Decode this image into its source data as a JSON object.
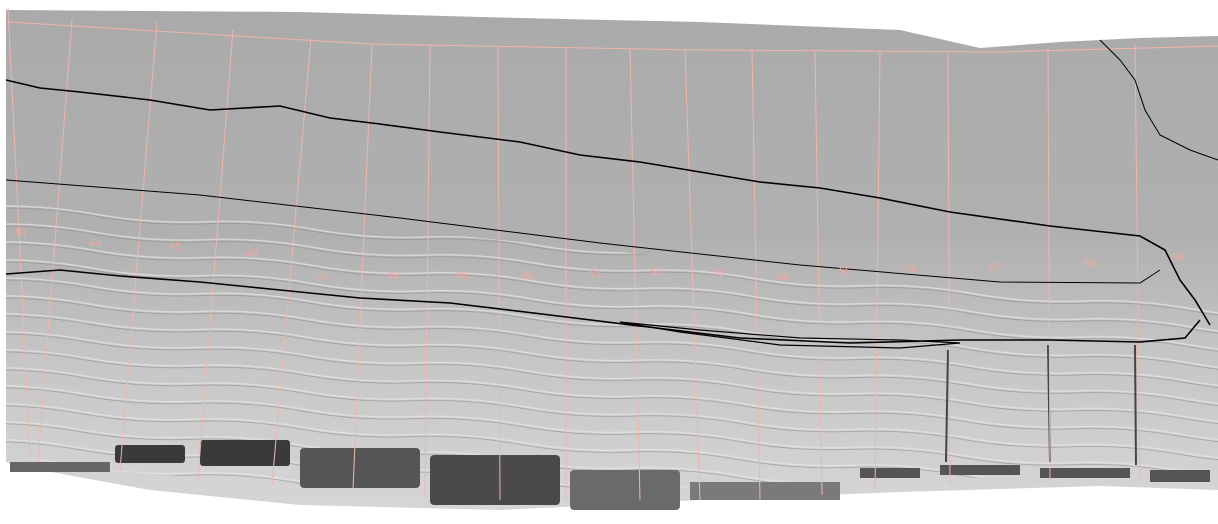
{
  "map": {
    "section_labels": [
      "43",
      "44",
      "45",
      "46",
      "47",
      "48",
      "49",
      "50",
      "51",
      "52",
      "53",
      "54",
      "55",
      "56",
      "57",
      "58",
      "59"
    ]
  }
}
